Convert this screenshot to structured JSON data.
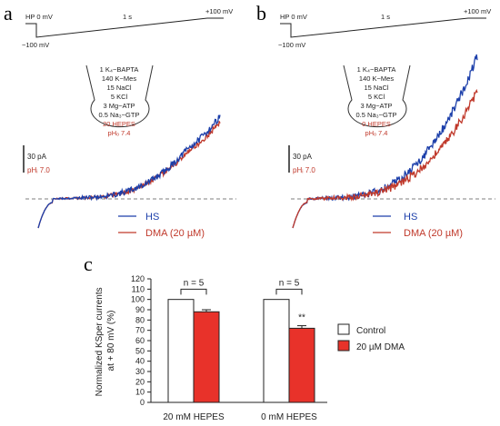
{
  "panels": [
    {
      "id": "a",
      "letter": "a",
      "protocol": {
        "hp_label": "HP 0 mV",
        "duration_label": "1 s",
        "top_label": "+100 mV",
        "bottom_label": "−100 mV"
      },
      "solution": [
        "1 K₄−BAPTA",
        "140 K−Mes",
        "15 NaCl",
        "5  KCl",
        "3 Mg−ATP",
        "0.5 Na₃−GTP",
        "20 HEPES",
        "pHₒ 7.4"
      ],
      "solution_highlight_index": 6,
      "scale_bar_label": "30 pA",
      "ph_i_label": "pHᵢ 7.0",
      "legend": [
        {
          "label": "HS",
          "color": "#1c3faa"
        },
        {
          "label": "DMA (20 µM)",
          "color": "#c0392b"
        }
      ],
      "trace_scale": {
        "blue_peak": 1.0,
        "red_peak": 0.93
      }
    },
    {
      "id": "b",
      "letter": "b",
      "protocol": {
        "hp_label": "HP 0 mV",
        "duration_label": "1 s",
        "top_label": "+100 mV",
        "bottom_label": "−100 mV"
      },
      "solution": [
        "1 K₄−BAPTA",
        "140 K−Mes",
        "15 NaCl",
        "5  KCl",
        "3 Mg−ATP",
        "0.5 Na₃−GTP",
        "0 HEPES",
        "pHₒ 7.4"
      ],
      "solution_highlight_index": 6,
      "scale_bar_label": "30 pA",
      "ph_i_label": "pHᵢ 7.0",
      "legend": [
        {
          "label": "HS",
          "color": "#1c3faa"
        },
        {
          "label": "DMA (20 µM)",
          "color": "#c0392b"
        }
      ],
      "trace_scale": {
        "blue_peak": 1.0,
        "red_peak": 0.74
      }
    }
  ],
  "chart_data": {
    "letter": "c",
    "type": "bar",
    "categories": [
      "20 mM HEPES",
      "0 mM HEPES"
    ],
    "series": [
      {
        "name": "Control",
        "values": [
          100,
          100
        ],
        "errors": [
          0,
          0
        ],
        "color": "#ffffff"
      },
      {
        "name": "20 µM DMA",
        "values": [
          88,
          72
        ],
        "errors": [
          2,
          2.5
        ],
        "color": "#e8322a"
      }
    ],
    "ylabel_lines": [
      "Normalized KSper currents",
      "at + 80 mV (%)"
    ],
    "ylim": [
      0,
      120
    ],
    "yticks": [
      0,
      10,
      20,
      30,
      40,
      50,
      60,
      70,
      80,
      90,
      100,
      110,
      120
    ],
    "n_labels": [
      "n = 5",
      "n = 5"
    ],
    "significance": [
      "",
      "**"
    ],
    "legend_position": "right",
    "grid": false
  }
}
